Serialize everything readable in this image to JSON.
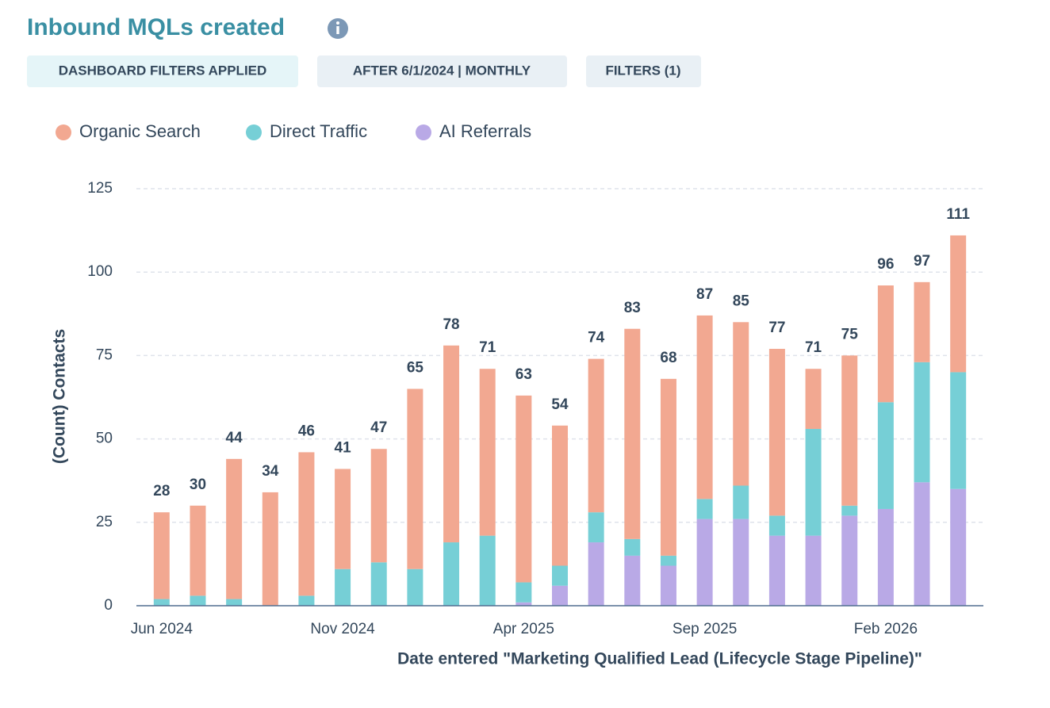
{
  "filters": [
    "DASHBOARD FILTERS APPLIED",
    "AFTER 6/1/2024 | MONTHLY",
    "FILTERS (1)"
  ],
  "chart_data": {
    "type": "stacked-bar",
    "title": "Inbound MQLs created",
    "x_label": "Date entered \"Marketing Qualified Lead (Lifecycle Stage Pipeline)\"",
    "y_label": "(Count) Contacts",
    "categories": [
      "Jun 2024",
      null,
      null,
      null,
      null,
      "Nov 2024",
      null,
      null,
      null,
      null,
      "Apr 2025",
      null,
      null,
      null,
      null,
      "Sep 2025",
      null,
      null,
      null,
      null,
      "Feb 2026",
      null,
      null
    ],
    "series": [
      {
        "name": "Organic Search",
        "color": "#f2a891",
        "values": [
          26,
          27,
          42,
          34,
          43,
          30,
          34,
          54,
          59,
          50,
          56,
          42,
          46,
          63,
          53,
          55,
          49,
          50,
          18,
          45,
          35,
          24,
          41
        ]
      },
      {
        "name": "Direct Traffic",
        "color": "#76cfd6",
        "values": [
          2,
          3,
          2,
          0,
          3,
          11,
          13,
          11,
          19,
          21,
          6,
          6,
          9,
          5,
          3,
          6,
          10,
          6,
          32,
          3,
          32,
          36,
          35
        ]
      },
      {
        "name": "AI Referrals",
        "color": "#b9a9e6",
        "values": [
          0,
          0,
          0,
          0,
          0,
          0,
          0,
          0,
          0,
          0,
          1,
          6,
          19,
          15,
          12,
          26,
          26,
          21,
          21,
          27,
          29,
          37,
          35
        ]
      }
    ],
    "totals": [
      28,
      30,
      44,
      34,
      46,
      41,
      47,
      65,
      78,
      71,
      63,
      54,
      74,
      83,
      68,
      87,
      85,
      77,
      71,
      75,
      96,
      97,
      111
    ],
    "ylim": [
      0,
      125
    ],
    "yticks": [
      0,
      25,
      50,
      75,
      100,
      125
    ],
    "grid": true,
    "legend": "top-left"
  }
}
